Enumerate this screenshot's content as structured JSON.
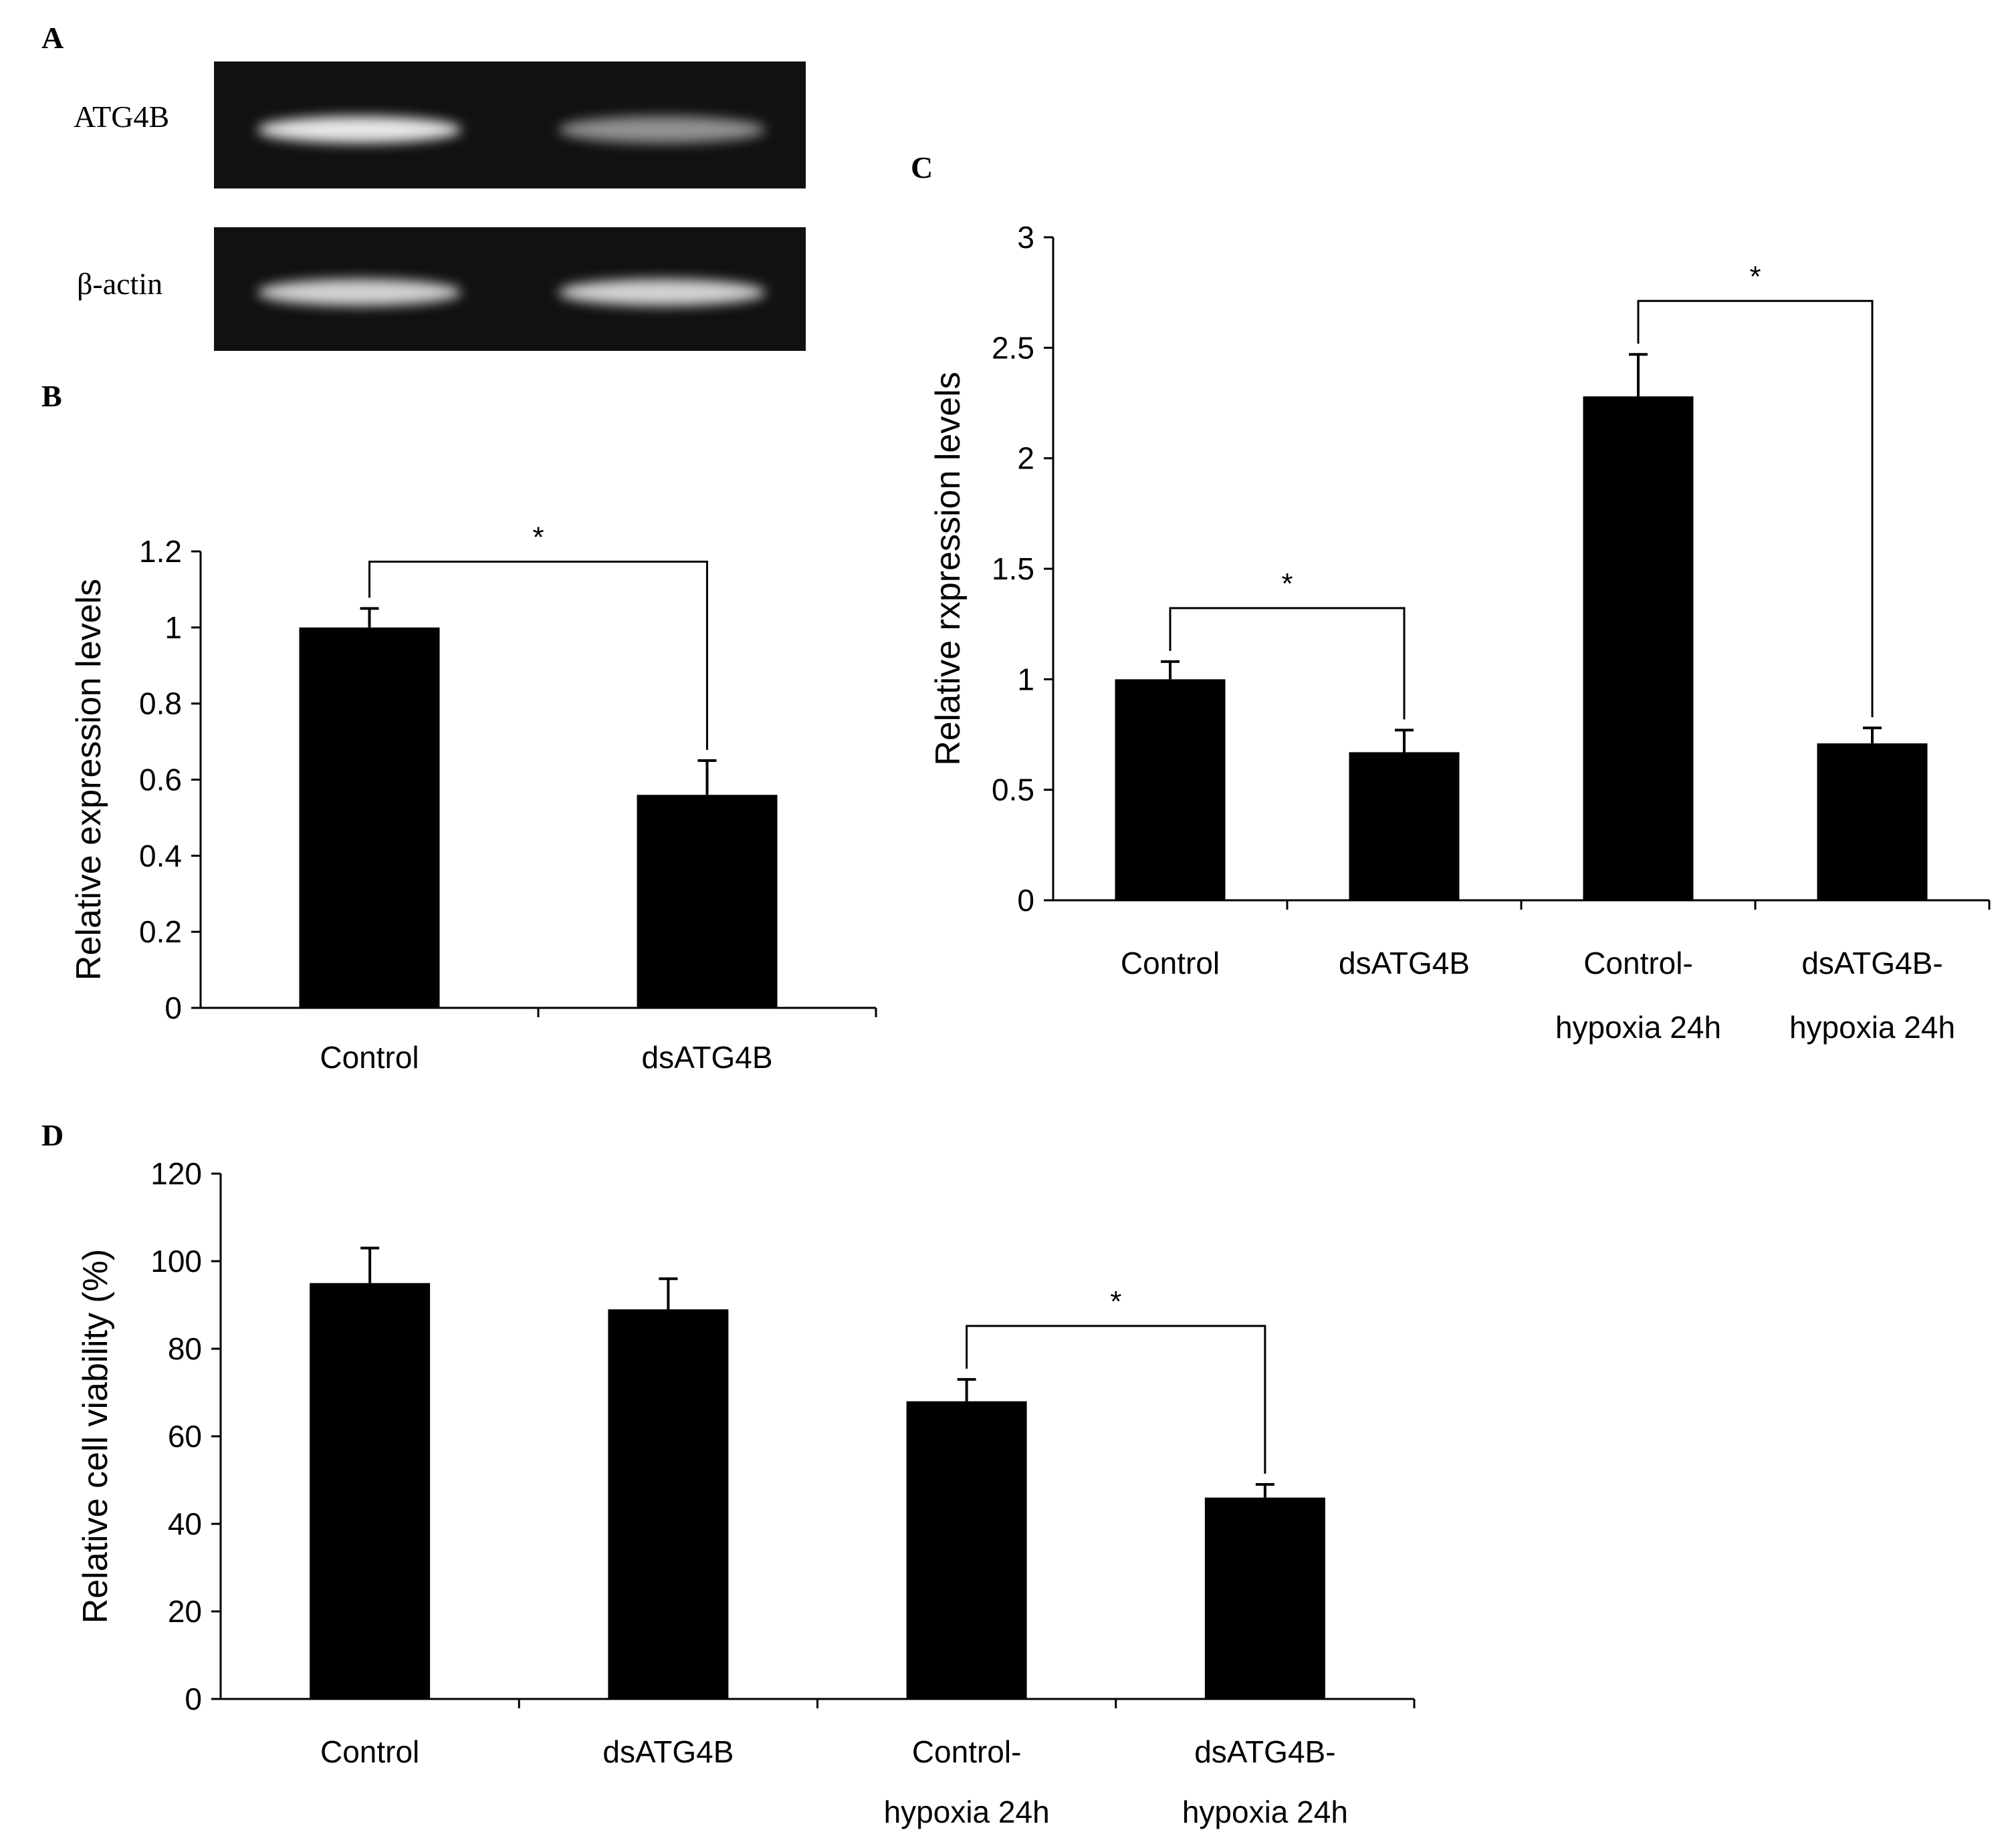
{
  "panels": {
    "A": "A",
    "B": "B",
    "C": "C",
    "D": "D"
  },
  "blot": {
    "rows": [
      {
        "label": "ATG4B",
        "band_intensity": [
          1.0,
          0.6
        ]
      },
      {
        "label": "β-actin",
        "band_intensity": [
          0.9,
          0.9
        ]
      }
    ],
    "background": "#111111",
    "band_color": "#e8e8e8"
  },
  "chart_data": [
    {
      "panel": "B",
      "type": "bar",
      "categories": [
        "Control",
        "dsATG4B"
      ],
      "values": [
        1.0,
        0.56
      ],
      "errors": [
        0.05,
        0.09
      ],
      "ylabel": "Relative expression levels",
      "ylim": [
        0,
        1.2
      ],
      "yticks": [
        "0",
        "0.2",
        "0.4",
        "0.6",
        "0.8",
        "1",
        "1.2"
      ],
      "significance": [
        {
          "from": 0,
          "to": 1,
          "label": "*"
        }
      ],
      "grid": false,
      "bar_color": "#000000"
    },
    {
      "panel": "C",
      "type": "bar",
      "categories": [
        [
          "Control"
        ],
        [
          "dsATG4B"
        ],
        [
          "Control-",
          "hypoxia 24h"
        ],
        [
          "dsATG4B-",
          "hypoxia 24h"
        ]
      ],
      "values": [
        1.0,
        0.67,
        2.28,
        0.71
      ],
      "errors": [
        0.08,
        0.1,
        0.19,
        0.07
      ],
      "ylabel": "Relative rxpression levels",
      "ylim": [
        0,
        3
      ],
      "yticks": [
        "0",
        "0.5",
        "1",
        "1.5",
        "2",
        "2.5",
        "3"
      ],
      "significance": [
        {
          "from": 0,
          "to": 1,
          "label": "*"
        },
        {
          "from": 2,
          "to": 3,
          "label": "*"
        }
      ],
      "grid": false,
      "bar_color": "#000000"
    },
    {
      "panel": "D",
      "type": "bar",
      "categories": [
        [
          "Control"
        ],
        [
          "dsATG4B"
        ],
        [
          "Control-",
          "hypoxia 24h"
        ],
        [
          "dsATG4B-",
          "hypoxia 24h"
        ]
      ],
      "values": [
        95,
        89,
        68,
        46
      ],
      "errors": [
        8,
        7,
        5,
        3
      ],
      "ylabel": "Relative cell viability (%)",
      "ylim": [
        0,
        120
      ],
      "yticks": [
        "0",
        "20",
        "40",
        "60",
        "80",
        "100",
        "120"
      ],
      "significance": [
        {
          "from": 2,
          "to": 3,
          "label": "*"
        }
      ],
      "grid": false,
      "bar_color": "#000000"
    }
  ]
}
